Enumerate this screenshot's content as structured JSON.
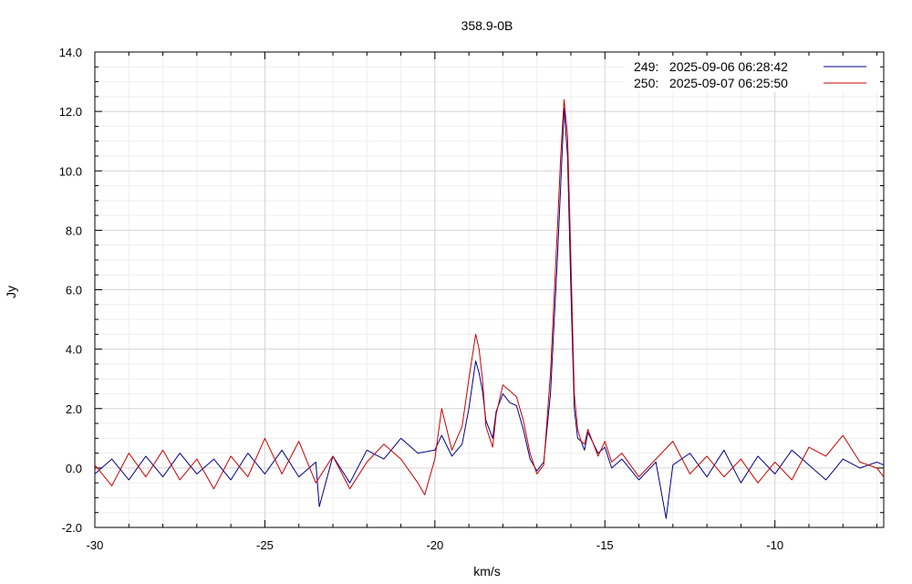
{
  "chart_data": {
    "type": "line",
    "title": "358.9-0B",
    "xlabel": "km/s",
    "ylabel": "Jy",
    "xlim": [
      -30,
      -6.8
    ],
    "ylim": [
      -2.0,
      14.0
    ],
    "xticks": [
      -30,
      -25,
      -20,
      -15,
      -10
    ],
    "xtick_labels": [
      "-30",
      "-25",
      "-20",
      "-15",
      "-10"
    ],
    "yticks": [
      -2,
      0,
      2,
      4,
      6,
      8,
      10,
      12,
      14
    ],
    "ytick_labels": [
      "-2.0",
      "0.0",
      "2.0",
      "4.0",
      "6.0",
      "8.0",
      "10.0",
      "12.0",
      "14.0"
    ],
    "grid": true,
    "legend_position": "top-right",
    "series": [
      {
        "name": "249:   2025-09-06 06:28:42",
        "color": "#00008b",
        "x": [
          -30.0,
          -29.5,
          -29.0,
          -28.5,
          -28.0,
          -27.5,
          -27.0,
          -26.5,
          -26.0,
          -25.5,
          -25.0,
          -24.5,
          -24.0,
          -23.5,
          -23.4,
          -23.0,
          -22.5,
          -22.0,
          -21.5,
          -21.0,
          -20.5,
          -20.0,
          -19.8,
          -19.5,
          -19.2,
          -19.0,
          -18.8,
          -18.7,
          -18.6,
          -18.5,
          -18.3,
          -18.2,
          -18.0,
          -17.8,
          -17.6,
          -17.4,
          -17.2,
          -17.0,
          -16.8,
          -16.6,
          -16.4,
          -16.3,
          -16.2,
          -16.1,
          -16.0,
          -15.9,
          -15.8,
          -15.7,
          -15.6,
          -15.5,
          -15.2,
          -15.0,
          -14.8,
          -14.5,
          -14.0,
          -13.5,
          -13.2,
          -13.0,
          -12.5,
          -12.0,
          -11.5,
          -11.0,
          -10.5,
          -10.0,
          -9.5,
          -9.0,
          -8.5,
          -8.0,
          -7.5,
          -7.0,
          -6.8
        ],
        "y": [
          -0.2,
          0.3,
          -0.4,
          0.4,
          -0.3,
          0.5,
          -0.2,
          0.3,
          -0.4,
          0.5,
          -0.2,
          0.6,
          -0.3,
          0.2,
          -1.3,
          0.4,
          -0.5,
          0.6,
          0.3,
          1.0,
          0.5,
          0.6,
          1.1,
          0.4,
          0.8,
          2.0,
          3.6,
          3.2,
          2.6,
          1.6,
          1.0,
          1.9,
          2.5,
          2.2,
          2.1,
          1.3,
          0.3,
          -0.1,
          0.2,
          2.5,
          7.0,
          9.5,
          12.1,
          10.5,
          6.0,
          2.0,
          1.0,
          0.9,
          0.6,
          1.2,
          0.5,
          0.7,
          0.0,
          0.3,
          -0.4,
          0.2,
          -1.7,
          0.1,
          0.5,
          -0.3,
          0.6,
          -0.5,
          0.4,
          -0.2,
          0.6,
          0.1,
          -0.4,
          0.3,
          0.0,
          0.2,
          0.1
        ]
      },
      {
        "name": "250:   2025-09-07 06:25:50",
        "color": "#cc0000",
        "x": [
          -30.0,
          -29.5,
          -29.0,
          -28.5,
          -28.0,
          -27.5,
          -27.0,
          -26.5,
          -26.0,
          -25.5,
          -25.0,
          -24.5,
          -24.0,
          -23.5,
          -23.0,
          -22.5,
          -22.0,
          -21.5,
          -21.0,
          -20.5,
          -20.3,
          -20.0,
          -19.8,
          -19.5,
          -19.2,
          -19.0,
          -18.8,
          -18.7,
          -18.6,
          -18.5,
          -18.3,
          -18.2,
          -18.0,
          -17.8,
          -17.6,
          -17.4,
          -17.2,
          -17.0,
          -16.8,
          -16.6,
          -16.4,
          -16.3,
          -16.2,
          -16.1,
          -16.0,
          -15.9,
          -15.8,
          -15.7,
          -15.6,
          -15.5,
          -15.2,
          -15.0,
          -14.8,
          -14.5,
          -14.0,
          -13.5,
          -13.0,
          -12.5,
          -12.0,
          -11.5,
          -11.0,
          -10.5,
          -10.0,
          -9.5,
          -9.0,
          -8.5,
          -8.0,
          -7.5,
          -7.0,
          -6.8
        ],
        "y": [
          0.1,
          -0.6,
          0.5,
          -0.3,
          0.6,
          -0.4,
          0.3,
          -0.7,
          0.4,
          -0.3,
          1.0,
          -0.2,
          0.9,
          -0.5,
          0.4,
          -0.7,
          0.2,
          0.8,
          0.3,
          -0.5,
          -0.9,
          0.3,
          2.0,
          0.6,
          1.4,
          3.0,
          4.5,
          4.0,
          3.0,
          1.4,
          0.7,
          1.8,
          2.8,
          2.6,
          2.4,
          1.6,
          0.5,
          -0.2,
          0.1,
          3.2,
          8.0,
          10.5,
          12.4,
          11.2,
          7.0,
          2.5,
          1.3,
          0.9,
          0.8,
          1.3,
          0.4,
          0.9,
          0.2,
          0.5,
          -0.3,
          0.3,
          0.9,
          -0.2,
          0.4,
          -0.3,
          0.3,
          -0.5,
          0.2,
          -0.4,
          0.7,
          0.4,
          1.1,
          0.2,
          0.0,
          -0.3
        ]
      }
    ]
  }
}
